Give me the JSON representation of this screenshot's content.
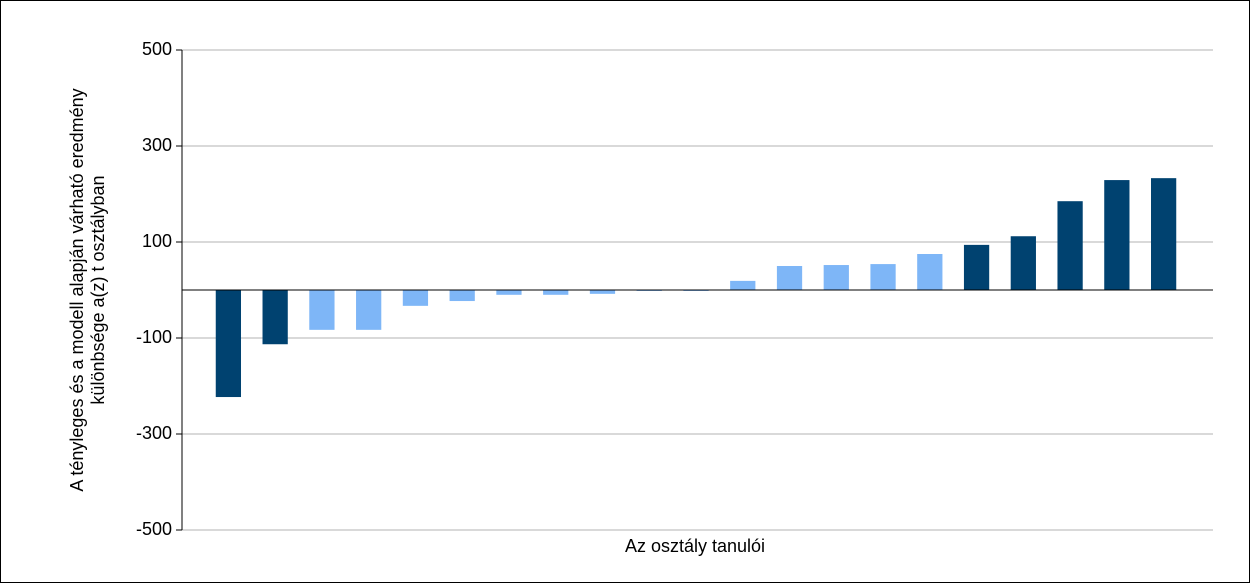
{
  "chart_data": {
    "type": "bar",
    "x_label": "Az osztály tanulói",
    "y_label": [
      "A tényleges és a modell alapján várható eredmény",
      "különbsége a(z) t osztályban"
    ],
    "categories": [
      null,
      null,
      null,
      null,
      null,
      null,
      null,
      null,
      null,
      null,
      null,
      null,
      null,
      null,
      null,
      null,
      null,
      null,
      null,
      null,
      null
    ],
    "values": [
      -223,
      -113,
      -83,
      -83,
      -33,
      -23,
      -10,
      -10,
      -8,
      -2,
      -2,
      19,
      50,
      52,
      54,
      75,
      94,
      112,
      185,
      229,
      233
    ],
    "colors": [
      "#004270",
      "#004270",
      "#7eb6f7",
      "#7eb6f7",
      "#7eb6f7",
      "#7eb6f7",
      "#7eb6f7",
      "#7eb6f7",
      "#7eb6f7",
      "#7eb6f7",
      "#7eb6f7",
      "#7eb6f7",
      "#7eb6f7",
      "#7eb6f7",
      "#7eb6f7",
      "#7eb6f7",
      "#004270",
      "#004270",
      "#004270",
      "#004270",
      "#004270"
    ],
    "ylim": [
      -500,
      500
    ],
    "yticks": [
      -500,
      -300,
      -100,
      100,
      300,
      500
    ],
    "grid": true
  }
}
